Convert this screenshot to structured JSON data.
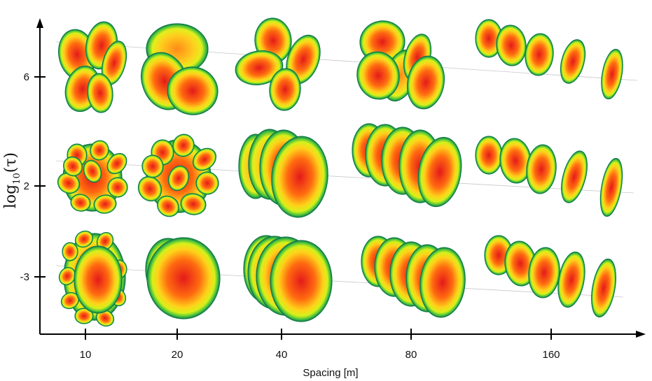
{
  "figure": {
    "x_axis": {
      "title": "Spacing [m]",
      "ticks": [
        "10",
        "20",
        "40",
        "80",
        "160"
      ]
    },
    "y_axis": {
      "title_main": "log",
      "title_sub": "10",
      "title_arg": "(τ)",
      "ticks": [
        "6",
        "2",
        "-3"
      ]
    },
    "colors": {
      "core": "#e8201c",
      "mid": "#ff8c1a",
      "outer": "#f2e80a",
      "rim": "#4fc83a",
      "edge": "#1a8a4a",
      "axis": "#000000"
    },
    "rows": [
      {
        "tau": "6",
        "cells": [
          {
            "spacing": "10",
            "pattern": "clover-split"
          },
          {
            "spacing": "20",
            "pattern": "cluster"
          },
          {
            "spacing": "40",
            "pattern": "petals-separated"
          },
          {
            "spacing": "80",
            "pattern": "separated-tilted"
          },
          {
            "spacing": "160",
            "pattern": "row-of-disks"
          }
        ]
      },
      {
        "tau": "2",
        "cells": [
          {
            "spacing": "10",
            "pattern": "fragmented-flower"
          },
          {
            "spacing": "20",
            "pattern": "fragmented-flower"
          },
          {
            "spacing": "40",
            "pattern": "stacked-disks"
          },
          {
            "spacing": "80",
            "pattern": "stacked-disks"
          },
          {
            "spacing": "160",
            "pattern": "row-of-disks"
          }
        ]
      },
      {
        "tau": "-3",
        "cells": [
          {
            "spacing": "10",
            "pattern": "rough-disk"
          },
          {
            "spacing": "20",
            "pattern": "single-disk"
          },
          {
            "spacing": "40",
            "pattern": "stacked-disks"
          },
          {
            "spacing": "80",
            "pattern": "stacked-disks"
          },
          {
            "spacing": "160",
            "pattern": "row-of-disks"
          }
        ]
      }
    ]
  }
}
